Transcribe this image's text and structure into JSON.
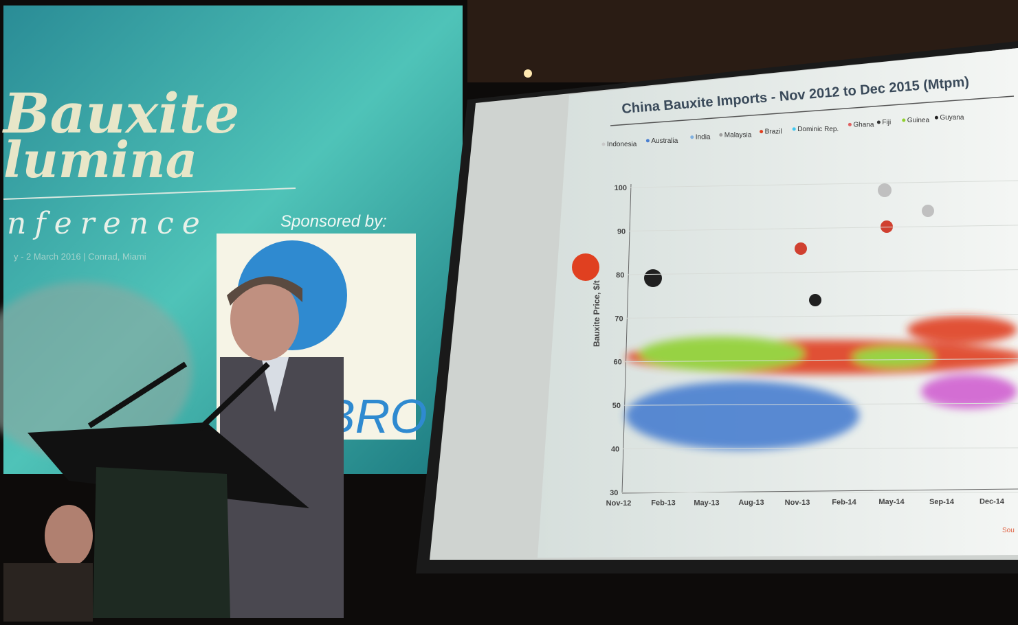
{
  "left_screen": {
    "title_line_1": "Bauxite",
    "title_line_2": "lumina",
    "title_line_3": "nference",
    "date_line": "y - 2 March 2016 | Conrad, Miami",
    "sponsored": "Sponsored by:",
    "sponsor_logo_text": "BRO"
  },
  "slide": {
    "title": "China Bauxite Imports - Nov 2012 to Dec 2015 (Mtpm)",
    "legend": [
      {
        "name": "Indonesia",
        "color": "#c8c8c8"
      },
      {
        "name": "Australia",
        "color": "#4a7fd0"
      },
      {
        "name": "India",
        "color": "#7fb0e0"
      },
      {
        "name": "Malaysia",
        "color": "#a0a0a0"
      },
      {
        "name": "Brazil",
        "color": "#e04020"
      },
      {
        "name": "Dominic Rep.",
        "color": "#40c8f0"
      },
      {
        "name": "Ghana",
        "color": "#e06060"
      },
      {
        "name": "Fiji",
        "color": "#303030"
      },
      {
        "name": "Guinea",
        "color": "#90d030"
      },
      {
        "name": "Guyana",
        "color": "#202020"
      }
    ],
    "y_label": "Bauxite Price, $/t",
    "y_ticks": [
      "100",
      "90",
      "80",
      "70",
      "60",
      "50",
      "40",
      "30"
    ],
    "x_ticks": [
      "Nov-12",
      "Feb-13",
      "May-13",
      "Aug-13",
      "Nov-13",
      "Feb-14",
      "May-14",
      "Sep-14",
      "Dec-14"
    ],
    "source": "Sou"
  }
}
